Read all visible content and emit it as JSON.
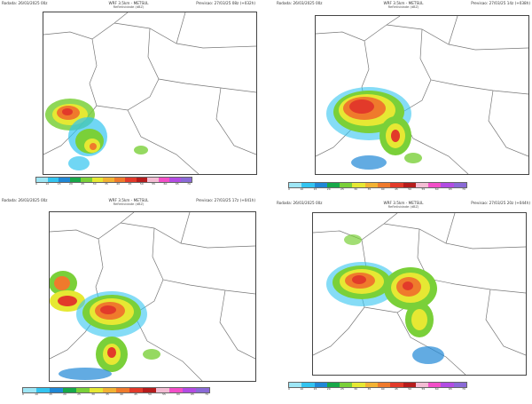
{
  "colors": [
    "#9ee6f5",
    "#33c4f0",
    "#1f88d6",
    "#17a84a",
    "#7ad039",
    "#e6e833",
    "#f2b233",
    "#ef7a2c",
    "#e23a2a",
    "#b51c1c",
    "#f3bcd3",
    "#f24fc8",
    "#b24ce3",
    "#8a6ad6"
  ],
  "panels": [
    {
      "run": "Rodada: 26/03/2025 00z",
      "model": "WRF 3.5km - METSUL",
      "subtitle": "Refletividade (dBZ)",
      "forecast": "Previsao: 27/03/25 08z (+032h)",
      "colorbar_labels": [
        "0",
        "10",
        "15",
        "20",
        "25",
        "30",
        "35",
        "40",
        "45",
        "50",
        "55",
        "60",
        "65",
        "70"
      ]
    },
    {
      "run": "Rodada: 26/03/2025 00z",
      "model": "WRF 3.5km - METSUL",
      "subtitle": "Refletividade (dBZ)",
      "forecast": "Previsao: 27/03/25 14z (+038h)",
      "colorbar_labels": [
        "0",
        "10",
        "15",
        "20",
        "25",
        "30",
        "35",
        "40",
        "45",
        "50",
        "55",
        "60",
        "65",
        "70"
      ]
    },
    {
      "run": "Rodada: 26/03/2025 00z",
      "model": "WRF 3.5km - METSUL",
      "subtitle": "Refletividade (dBZ)",
      "forecast": "Previsao: 27/03/25 17z (+041h)",
      "colorbar_labels": [
        "0",
        "10",
        "15",
        "20",
        "25",
        "30",
        "35",
        "40",
        "45",
        "50",
        "55",
        "60",
        "65",
        "70"
      ]
    },
    {
      "run": "Rodada: 26/03/2025 00z",
      "model": "WRF 3.5km - METSUL",
      "subtitle": "Refletividade (dBZ)",
      "forecast": "Previsao: 27/03/25 20z (+044h)",
      "colorbar_labels": [
        "0",
        "10",
        "15",
        "20",
        "25",
        "30",
        "35",
        "40",
        "45",
        "50",
        "55",
        "60",
        "65",
        "70"
      ]
    }
  ]
}
